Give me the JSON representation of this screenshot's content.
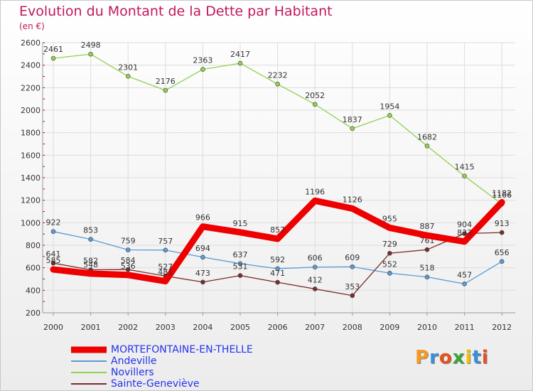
{
  "chart_data": {
    "type": "line",
    "title": "Evolution du Montant de la Dette par Habitant",
    "subtitle": "(en €)",
    "xlabel": "",
    "ylabel": "",
    "x": [
      "2000",
      "2001",
      "2002",
      "2003",
      "2004",
      "2005",
      "2006",
      "2007",
      "2008",
      "2009",
      "2010",
      "2011",
      "2012"
    ],
    "ylim": [
      200,
      2600
    ],
    "yticks": [
      "200",
      "400",
      "600",
      "800",
      "1000",
      "1200",
      "1400",
      "1600",
      "1800",
      "2000",
      "2200",
      "2400",
      "2600"
    ],
    "grid": true,
    "legend_position": "bottom-left",
    "series": [
      {
        "name": "MORTEFONTAINE-EN-THELLE",
        "color": "#ee0000",
        "width": 9,
        "values": [
          585,
          548,
          536,
          481,
          966,
          915,
          857,
          1196,
          1126,
          955,
          887,
          833,
          1182
        ],
        "labels": [
          "585",
          "548",
          "536",
          "481",
          "966",
          "915",
          "857",
          "1196",
          "1126",
          "955",
          "887",
          "833",
          "1182"
        ]
      },
      {
        "name": "Andeville",
        "color": "#5b9bd5",
        "width": 1.3,
        "values": [
          922,
          853,
          759,
          757,
          694,
          637,
          592,
          606,
          609,
          552,
          518,
          457,
          656
        ],
        "labels": [
          "922",
          "853",
          "759",
          "757",
          "694",
          "637",
          "592",
          "606",
          "609",
          "552",
          "518",
          "457",
          "656"
        ]
      },
      {
        "name": "Novillers",
        "color": "#92d050",
        "width": 1.3,
        "values": [
          2461,
          2498,
          2301,
          2176,
          2363,
          2417,
          2232,
          2052,
          1837,
          1954,
          1682,
          1415,
          1166
        ],
        "labels": [
          "2461",
          "2498",
          "2301",
          "2176",
          "2363",
          "2417",
          "2232",
          "2052",
          "1837",
          "1954",
          "1682",
          "1415",
          "1166"
        ]
      },
      {
        "name": "Sainte-Geneviève",
        "color": "#7b2c2c",
        "width": 1.3,
        "values": [
          641,
          582,
          584,
          527,
          473,
          531,
          471,
          412,
          353,
          729,
          761,
          904,
          913
        ],
        "labels": [
          "641",
          "582",
          "584",
          "527",
          "473",
          "531",
          "471",
          "412",
          "353",
          "729",
          "761",
          "904",
          "913"
        ]
      }
    ]
  },
  "logo": {
    "letters": [
      "P",
      "r",
      "o",
      "x",
      "i",
      "t",
      "i"
    ],
    "colors": [
      "#f59a23",
      "#3a8fd8",
      "#e8501e",
      "#3aa63a",
      "#f5c000",
      "#3a8fd8",
      "#e8501e"
    ]
  }
}
